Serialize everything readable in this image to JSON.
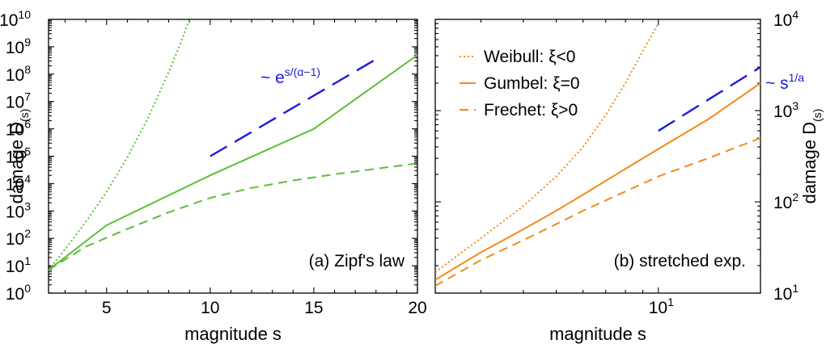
{
  "chart_data": [
    {
      "type": "line",
      "panel_label": "(a) Zipf's law",
      "xlabel": "magnitude s",
      "ylabel": "damage D(s)",
      "xscale": "linear",
      "yscale": "log",
      "xlim": [
        2.2,
        20
      ],
      "ylim": [
        1,
        10000000000.0
      ],
      "x_ticks": [
        5,
        10,
        15,
        20
      ],
      "y_tick_exponents": [
        0,
        1,
        2,
        3,
        4,
        5,
        6,
        7,
        8,
        9,
        10
      ],
      "y_tick_base": "10",
      "color": "#5cbf3a",
      "series": [
        {
          "style": "dotted",
          "x": [
            2.2,
            3,
            4,
            5,
            6,
            7,
            8,
            8.5,
            9
          ],
          "y": [
            7,
            40,
            400,
            5000,
            90000,
            2500000,
            120000000,
            1000000000,
            10000000000
          ]
        },
        {
          "style": "solid",
          "x": [
            2.2,
            5,
            10,
            15,
            20
          ],
          "y": [
            7,
            300,
            20000,
            1000000,
            500000000
          ]
        },
        {
          "style": "dashed",
          "x": [
            2.2,
            4,
            6,
            8,
            10,
            12,
            14,
            16,
            18,
            20
          ],
          "y": [
            7,
            50,
            220,
            900,
            3000,
            7000,
            13000,
            22000,
            35000,
            55000
          ]
        }
      ],
      "annotation": {
        "text": "~ e",
        "superscript": "s/(α−1)",
        "guide": {
          "style": "long-dashed",
          "color": "#1a1adb",
          "x": [
            10,
            18
          ],
          "y": [
            100000,
            350000000
          ]
        }
      }
    },
    {
      "type": "line",
      "panel_label": "(b) stretched exp.",
      "xlabel": "magnitude s",
      "ylabel": "damage D(s)",
      "xscale": "log",
      "yscale": "log",
      "xlim": [
        2.2,
        20
      ],
      "ylim": [
        10,
        10000
      ],
      "x_tick_major": [
        {
          "value": 10,
          "base": "10",
          "exp": "1"
        }
      ],
      "y_tick_exponents": [
        1,
        2,
        3,
        4
      ],
      "y_tick_base": "10",
      "color": "#f28a1c",
      "legend": {
        "placement": "top-left",
        "items": [
          {
            "label": "Weibull: ξ<0",
            "style": "dotted"
          },
          {
            "label": "Gumbel: ξ=0",
            "style": "solid"
          },
          {
            "label": "Frechet: ξ>0",
            "style": "dashed"
          }
        ]
      },
      "series": [
        {
          "style": "dotted",
          "x": [
            2.2,
            3,
            4,
            5,
            6,
            7,
            8,
            9,
            10
          ],
          "y": [
            17,
            40,
            90,
            190,
            400,
            900,
            2000,
            4500,
            9000
          ]
        },
        {
          "style": "solid",
          "x": [
            2.2,
            3,
            4,
            5,
            6,
            8,
            10,
            14,
            20
          ],
          "y": [
            14,
            28,
            50,
            80,
            120,
            230,
            380,
            800,
            2000
          ]
        },
        {
          "style": "dashed",
          "x": [
            2.2,
            3,
            4,
            5,
            6,
            8,
            10,
            14,
            20
          ],
          "y": [
            12,
            23,
            38,
            57,
            80,
            130,
            190,
            300,
            500
          ]
        }
      ],
      "annotation": {
        "text": "~ s",
        "superscript": "1/a",
        "guide": {
          "style": "long-dashed",
          "color": "#1a1adb",
          "x": [
            10,
            20
          ],
          "y": [
            600,
            3000
          ]
        }
      }
    }
  ]
}
